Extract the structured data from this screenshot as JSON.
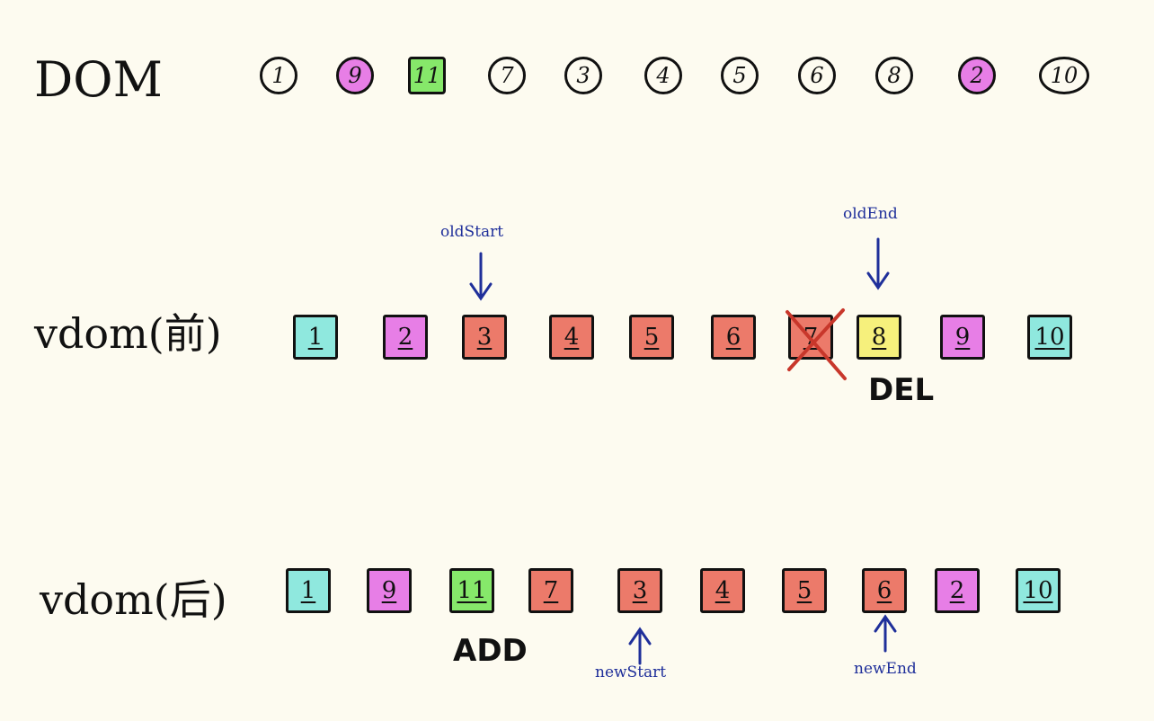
{
  "labels": {
    "dom": "DOM",
    "vdom_before": "vdom(前)",
    "vdom_after": "vdom(后)"
  },
  "dom_nodes": [
    {
      "label": "1",
      "color": "none",
      "shape": "circle"
    },
    {
      "label": "9",
      "color": "#e77ee6",
      "shape": "circle"
    },
    {
      "label": "11",
      "color": "#86e86a",
      "shape": "square"
    },
    {
      "label": "7",
      "color": "none",
      "shape": "circle"
    },
    {
      "label": "3",
      "color": "none",
      "shape": "circle"
    },
    {
      "label": "4",
      "color": "none",
      "shape": "circle"
    },
    {
      "label": "5",
      "color": "none",
      "shape": "circle"
    },
    {
      "label": "6",
      "color": "none",
      "shape": "circle"
    },
    {
      "label": "8",
      "color": "none",
      "shape": "circle"
    },
    {
      "label": "2",
      "color": "#e77ee6",
      "shape": "circle"
    },
    {
      "label": "10",
      "color": "none",
      "shape": "wide"
    }
  ],
  "vdom_before": [
    {
      "label": "1",
      "color": "#8fe8de"
    },
    {
      "label": "2",
      "color": "#e77ee6"
    },
    {
      "label": "3",
      "color": "#ec7a6a"
    },
    {
      "label": "4",
      "color": "#ec7a6a"
    },
    {
      "label": "5",
      "color": "#ec7a6a"
    },
    {
      "label": "6",
      "color": "#ec7a6a"
    },
    {
      "label": "7",
      "color": "#ec7a6a",
      "deleted": true
    },
    {
      "label": "8",
      "color": "#f6f07c"
    },
    {
      "label": "9",
      "color": "#e77ee6"
    },
    {
      "label": "10",
      "color": "#8fe8de"
    }
  ],
  "vdom_after": [
    {
      "label": "1",
      "color": "#8fe8de"
    },
    {
      "label": "9",
      "color": "#e77ee6"
    },
    {
      "label": "11",
      "color": "#86e86a"
    },
    {
      "label": "7",
      "color": "#ec7a6a"
    },
    {
      "label": "3",
      "color": "#ec7a6a"
    },
    {
      "label": "4",
      "color": "#ec7a6a"
    },
    {
      "label": "5",
      "color": "#ec7a6a"
    },
    {
      "label": "6",
      "color": "#ec7a6a"
    },
    {
      "label": "2",
      "color": "#e77ee6"
    },
    {
      "label": "10",
      "color": "#8fe8de"
    }
  ],
  "markers": {
    "old_start": "oldStart",
    "old_end": "oldEnd",
    "new_start": "newStart",
    "new_end": "newEnd"
  },
  "tags": {
    "del": "DEL",
    "add": "ADD"
  },
  "colors": {
    "pointer": "#1f2f9a",
    "delete_cross": "#c8372b"
  }
}
